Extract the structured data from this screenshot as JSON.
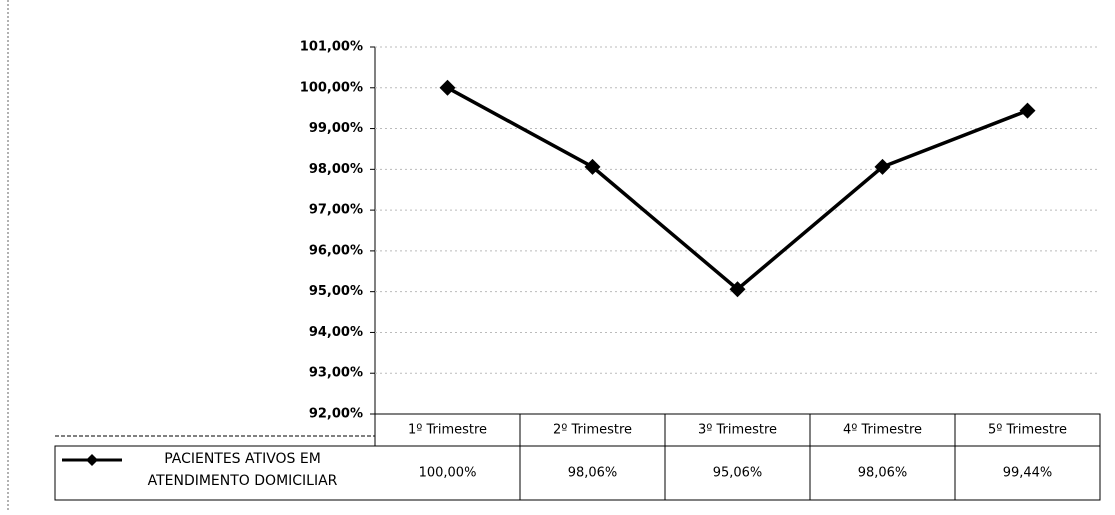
{
  "chart_data": {
    "type": "line",
    "categories": [
      "1º Trimestre",
      "2º Trimestre",
      "3º Trimestre",
      "4º Trimestre",
      "5º Trimestre"
    ],
    "series": [
      {
        "name": "PACIENTES ATIVOS EM ATENDIMENTO DOMICILIAR",
        "color": "#000000",
        "values": [
          100,
          98.06,
          95.06,
          98.06,
          99.44
        ],
        "value_labels": [
          "100,00%",
          "98,06%",
          "95,06%",
          "98,06%",
          "99,44%"
        ]
      }
    ],
    "ylim": [
      92,
      101
    ],
    "yticks": [
      {
        "value": 92,
        "label": "92,00%"
      },
      {
        "value": 93,
        "label": "93,00%"
      },
      {
        "value": 94,
        "label": "94,00%"
      },
      {
        "value": 95,
        "label": "95,00%"
      },
      {
        "value": 96,
        "label": "96,00%"
      },
      {
        "value": 97,
        "label": "97,00%"
      },
      {
        "value": 98,
        "label": "98,00%"
      },
      {
        "value": 99,
        "label": "99,00%"
      },
      {
        "value": 100,
        "label": "100,00%"
      },
      {
        "value": 101,
        "label": "101,00%"
      }
    ],
    "grid": true
  }
}
